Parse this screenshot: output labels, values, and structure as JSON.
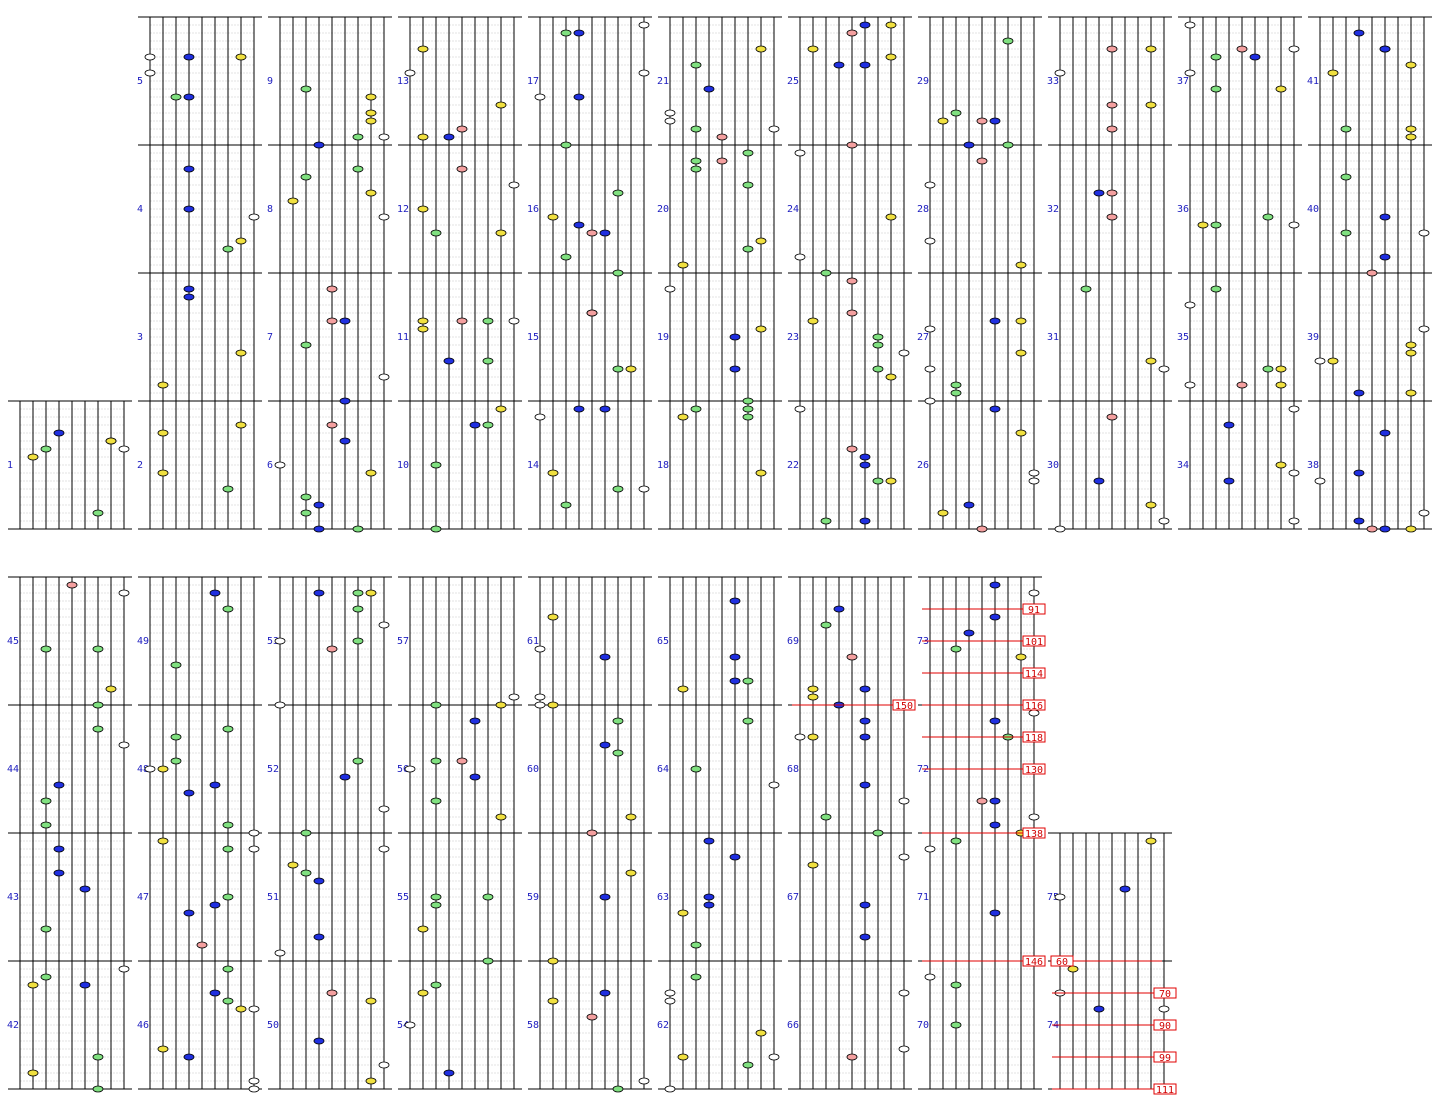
{
  "measures": [
    1,
    2,
    3,
    4,
    5,
    6,
    7,
    8,
    9,
    10,
    11,
    12,
    13,
    14,
    15,
    16,
    17,
    18,
    19,
    20,
    21,
    22,
    23,
    24,
    25,
    26,
    27,
    28,
    29,
    30,
    31,
    32,
    33,
    34,
    35,
    36,
    37,
    38,
    39,
    40,
    41,
    42,
    43,
    44,
    45,
    46,
    47,
    48,
    49,
    50,
    51,
    52,
    53,
    54,
    55,
    56,
    57,
    58,
    59,
    60,
    61,
    62,
    63,
    64,
    65,
    66,
    67,
    68,
    69,
    70,
    71,
    72,
    73,
    74,
    75
  ],
  "tempo_marks": [
    91,
    101,
    114,
    116,
    118,
    130,
    138,
    146,
    150,
    60,
    70,
    90,
    99,
    111
  ]
}
